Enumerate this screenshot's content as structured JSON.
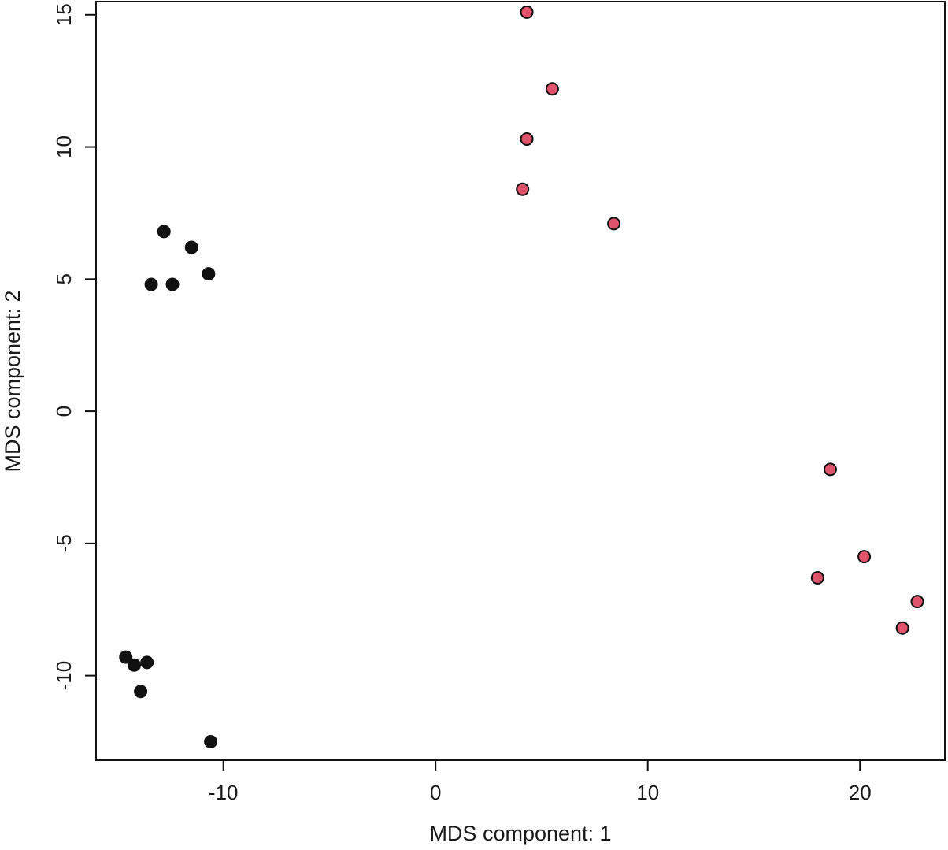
{
  "chart_data": {
    "type": "scatter",
    "title": "",
    "xlabel": "MDS component: 1",
    "ylabel": "MDS component: 2",
    "xlim": [
      -16.0,
      24.0
    ],
    "ylim": [
      -13.2,
      15.5
    ],
    "xticks": [
      -10,
      0,
      10,
      20
    ],
    "yticks": [
      -10,
      -5,
      0,
      5,
      10,
      15
    ],
    "xtick_labels": [
      "-10",
      "0",
      "10",
      "20"
    ],
    "ytick_labels": [
      "-10",
      "-5",
      "0",
      "5",
      "10",
      "15"
    ],
    "grid": false,
    "legend": "none",
    "series": [
      {
        "color": "#111111",
        "outline": "#111111",
        "points": [
          {
            "x": -12.8,
            "y": 6.8
          },
          {
            "x": -11.5,
            "y": 6.2
          },
          {
            "x": -10.7,
            "y": 5.2
          },
          {
            "x": -12.4,
            "y": 4.8
          },
          {
            "x": -13.4,
            "y": 4.8
          },
          {
            "x": -14.6,
            "y": -9.3
          },
          {
            "x": -14.2,
            "y": -9.6
          },
          {
            "x": -13.6,
            "y": -9.5
          },
          {
            "x": -13.9,
            "y": -10.6
          },
          {
            "x": -10.6,
            "y": -12.5
          }
        ]
      },
      {
        "color": "#df536b",
        "outline": "#111111",
        "points": [
          {
            "x": 4.3,
            "y": 15.1
          },
          {
            "x": 5.5,
            "y": 12.2
          },
          {
            "x": 4.3,
            "y": 10.3
          },
          {
            "x": 4.1,
            "y": 8.4
          },
          {
            "x": 8.4,
            "y": 7.1
          },
          {
            "x": 18.6,
            "y": -2.2
          },
          {
            "x": 20.2,
            "y": -5.5
          },
          {
            "x": 18.0,
            "y": -6.3
          },
          {
            "x": 22.7,
            "y": -7.2
          },
          {
            "x": 22.0,
            "y": -8.2
          }
        ]
      }
    ]
  }
}
